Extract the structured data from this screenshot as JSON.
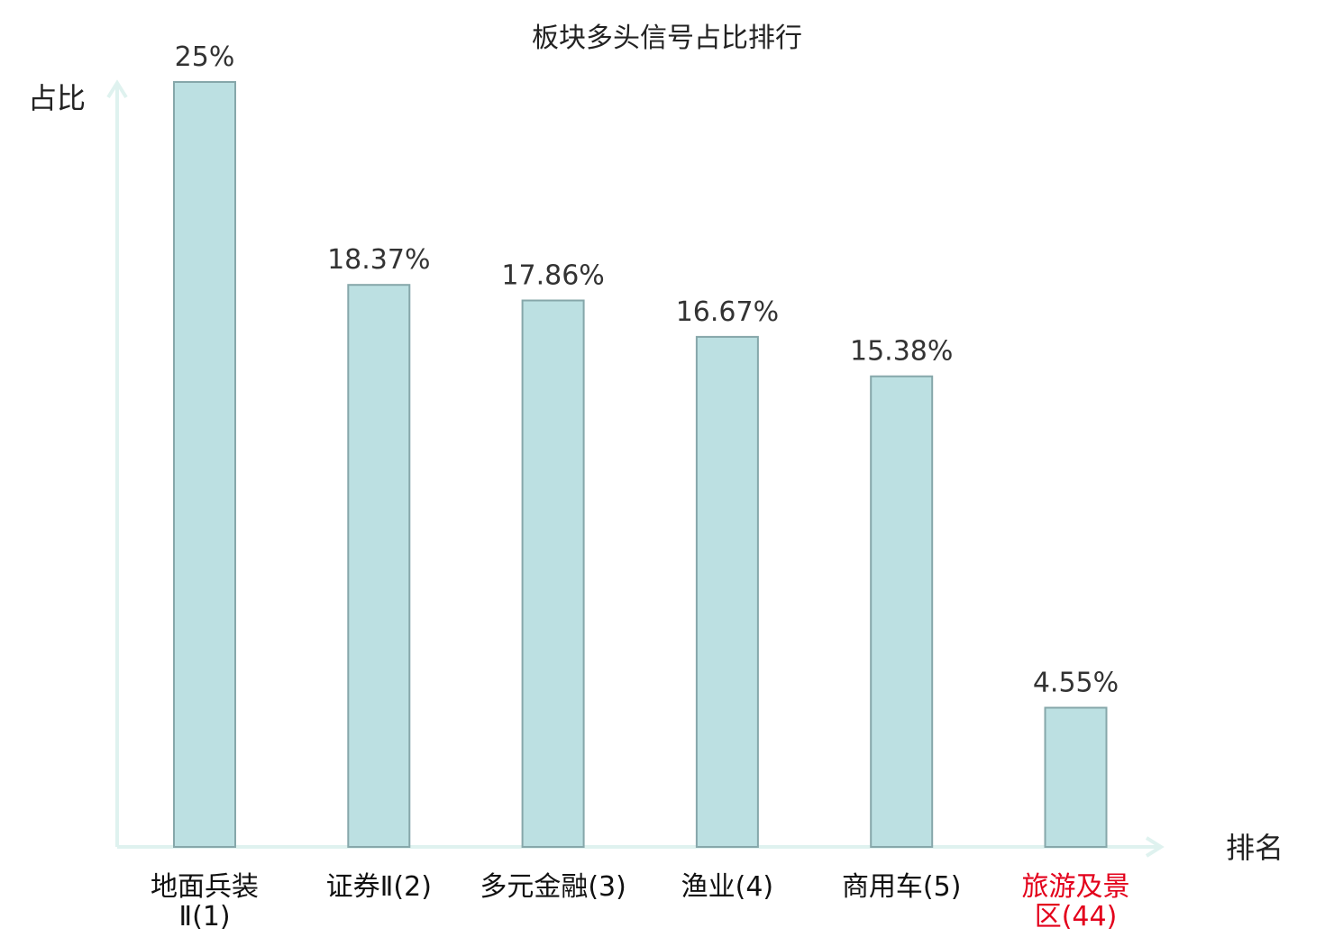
{
  "chart_data": {
    "type": "bar",
    "title": "板块多头信号占比排行",
    "ylabel": "占比",
    "xlabel": "排名",
    "ylim": [
      0,
      25
    ],
    "grid": false,
    "bar_color": "#bce0e2",
    "bar_edge_color": "#86a7aa",
    "axis_color": "#dff2ef",
    "highlight_color": "#e3001b",
    "categories": [
      {
        "lines": [
          "地面兵装",
          "Ⅱ(1)"
        ],
        "highlight": false
      },
      {
        "lines": [
          "证券Ⅱ(2)"
        ],
        "highlight": false
      },
      {
        "lines": [
          "多元金融(3)"
        ],
        "highlight": false
      },
      {
        "lines": [
          "渔业(4)"
        ],
        "highlight": false
      },
      {
        "lines": [
          "商用车(5)"
        ],
        "highlight": false
      },
      {
        "lines": [
          "旅游及景",
          "区(44)"
        ],
        "highlight": true
      }
    ],
    "values": [
      25,
      18.37,
      17.86,
      16.67,
      15.38,
      4.55
    ],
    "value_labels": [
      "25%",
      "18.37%",
      "17.86%",
      "16.67%",
      "15.38%",
      "4.55%"
    ]
  }
}
